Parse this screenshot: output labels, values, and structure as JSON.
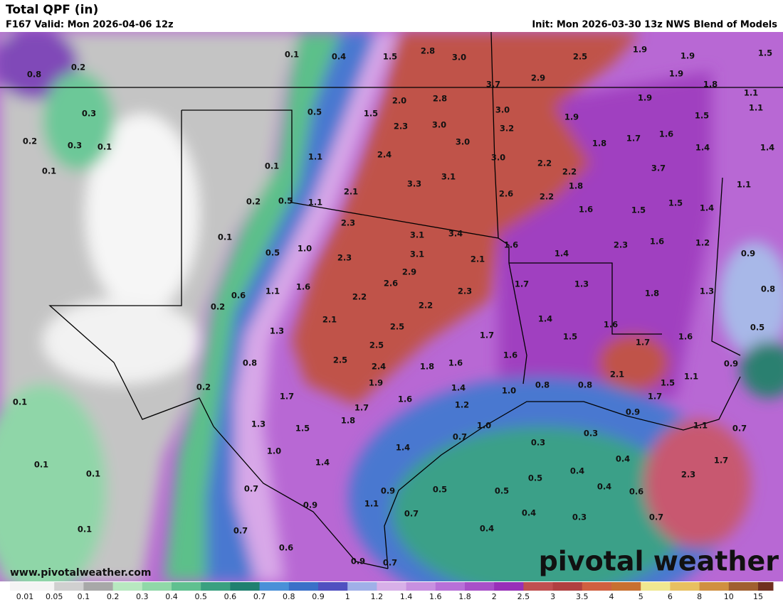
{
  "header": {
    "title": "Total QPF (in)",
    "valid": "F167 Valid: Mon 2026-04-06 12z",
    "init": "Init: Mon 2026-03-30 13z NWS Blend of Models"
  },
  "map_labels": [
    "0.8",
    "0.2",
    "0.1",
    "0.4",
    "1.5",
    "2.8",
    "3.0",
    "2.5",
    "1.9",
    "1.9",
    "1.5",
    "0.3",
    "3.7",
    "2.9",
    "1.9",
    "1.8",
    "1.1",
    "0.2",
    "0.3",
    "0.1",
    "0.5",
    "1.5",
    "2.0",
    "2.8",
    "3.0",
    "1.9",
    "1.9",
    "1.5",
    "1.1",
    "0.1",
    "2.3",
    "3.0",
    "3.2",
    "1.6",
    "1.7",
    "1.8",
    "1.4",
    "1.4",
    "1.1",
    "0.1",
    "2.4",
    "3.0",
    "3.0",
    "2.2",
    "2.2",
    "3.7",
    "2.1",
    "3.3",
    "3.1",
    "2.6",
    "2.2",
    "1.8",
    "1.1",
    "0.2",
    "0.5",
    "1.1",
    "1.6",
    "1.5",
    "1.5",
    "1.4",
    "2.3",
    "0.1",
    "3.1",
    "3.4",
    "1.6",
    "2.3",
    "1.6",
    "1.2",
    "0.5",
    "1.0",
    "2.3",
    "3.1",
    "2.1",
    "1.4",
    "0.9",
    "2.9",
    "1.7",
    "1.3",
    "0.6",
    "1.1",
    "1.6",
    "2.6",
    "2.3",
    "1.8",
    "1.3",
    "0.8",
    "0.2",
    "2.2",
    "2.2",
    "1.4",
    "2.1",
    "1.6",
    "0.5",
    "1.3",
    "2.5",
    "1.7",
    "1.5",
    "1.7",
    "1.6",
    "2.5",
    "1.6",
    "0.8",
    "2.5",
    "2.4",
    "1.8",
    "1.6",
    "0.9",
    "2.1",
    "1.1",
    "1.5",
    "1.9",
    "1.4",
    "0.8",
    "0.8",
    "1.0",
    "0.2",
    "1.7",
    "1.6",
    "1.7",
    "0.1",
    "1.7",
    "1.2",
    "1.3",
    "1.5",
    "1.8",
    "1.0",
    "0.9",
    "1.1",
    "0.7",
    "0.7",
    "0.3",
    "1.0",
    "1.4",
    "0.3",
    "0.4",
    "1.7",
    "0.1",
    "0.1",
    "1.4",
    "0.4",
    "2.3",
    "0.7",
    "0.9",
    "0.5",
    "0.5",
    "0.5",
    "0.4",
    "0.6",
    "0.9",
    "1.1",
    "0.7",
    "0.4",
    "0.3",
    "0.7",
    "0.7",
    "0.1",
    "0.4",
    "0.6",
    "0.9",
    "0.7"
  ],
  "colorbar": {
    "labels": [
      "0.01",
      "0.05",
      "0.1",
      "0.2",
      "0.3",
      "0.4",
      "0.5",
      "0.6",
      "0.7",
      "0.8",
      "0.9",
      "1",
      "1.2",
      "1.4",
      "1.6",
      "1.8",
      "2",
      "2.5",
      "3",
      "3.5",
      "4",
      "5",
      "6",
      "8",
      "10",
      "15"
    ],
    "colors": [
      "#f4f4f4",
      "#d0d0d0",
      "#a8a8a8",
      "#b8e8c0",
      "#90d8a8",
      "#60c090",
      "#3aa080",
      "#208070",
      "#4a90d8",
      "#3a70c8",
      "#5050c0",
      "#a0b0e8",
      "#d8b0e8",
      "#c890e0",
      "#b870d8",
      "#a850c8",
      "#9830b8",
      "#c05050",
      "#b04040",
      "#d06040",
      "#c87030",
      "#f0e890",
      "#e8c060",
      "#d09040",
      "#a06030",
      "#703020"
    ]
  },
  "footer": {
    "url": "www.pivotalweather.com",
    "brand": "pivotal weather"
  }
}
